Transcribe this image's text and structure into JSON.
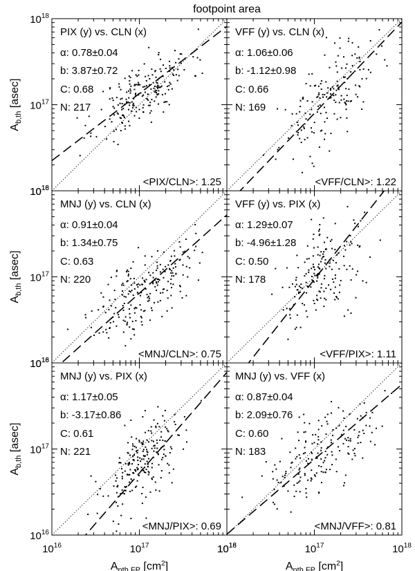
{
  "figure_title": "footpoint area",
  "chart_data": [
    {
      "type": "scatter",
      "title": "PIX (y) vs. CLN (x)",
      "stats": {
        "alpha": "α: 0.78±0.04",
        "b": "b: 3.87±0.72",
        "C": "C: 0.68",
        "N": "N: 217"
      },
      "ratio": "<PIX/CLN>: 1.25",
      "fit": {
        "slope": 0.78,
        "intercept": 3.87
      },
      "n": 217,
      "seed": 11,
      "cx": 17.05,
      "cy": 17.15,
      "sx": 0.27,
      "sy": 0.24,
      "corr": 0.68
    },
    {
      "type": "scatter",
      "title": "VFF (y) vs. CLN (x)",
      "stats": {
        "alpha": "α: 1.06±0.06",
        "b": "b: -1.12±0.98",
        "C": "C: 0.66",
        "N": "N: 169"
      },
      "ratio": "<VFF/CLN>: 1.22",
      "fit": {
        "slope": 1.06,
        "intercept": -1.12
      },
      "n": 169,
      "seed": 23,
      "cx": 17.15,
      "cy": 17.05,
      "sx": 0.27,
      "sy": 0.32,
      "corr": 0.66
    },
    {
      "type": "scatter",
      "title": "MNJ (y) vs. CLN (x)",
      "stats": {
        "alpha": "α: 0.91±0.04",
        "b": "b: 1.34±0.75",
        "C": "C: 0.63",
        "N": "N: 220"
      },
      "ratio": "<MNJ/CLN>: 0.75",
      "fit": {
        "slope": 0.91,
        "intercept": 1.34
      },
      "n": 220,
      "seed": 37,
      "cx": 17.05,
      "cy": 16.85,
      "sx": 0.28,
      "sy": 0.28,
      "corr": 0.63
    },
    {
      "type": "scatter",
      "title": "VFF (y) vs. PIX (x)",
      "stats": {
        "alpha": "α: 1.29±0.07",
        "b": "b: -4.96±1.28",
        "C": "C: 0.50",
        "N": "N: 178"
      },
      "ratio": "<VFF/PIX>: 1.11",
      "fit": {
        "slope": 1.29,
        "intercept": -4.96
      },
      "n": 178,
      "seed": 41,
      "cx": 17.1,
      "cy": 17.05,
      "sx": 0.25,
      "sy": 0.3,
      "corr": 0.5
    },
    {
      "type": "scatter",
      "title": "MNJ (y) vs. PIX (x)",
      "stats": {
        "alpha": "α: 1.17±0.05",
        "b": "b: -3.17±0.86",
        "C": "C: 0.61",
        "N": "N: 221"
      },
      "ratio": "<MNJ/PIX>: 0.69",
      "fit": {
        "slope": 1.17,
        "intercept": -3.17
      },
      "n": 221,
      "seed": 53,
      "cx": 17.05,
      "cy": 16.85,
      "sx": 0.24,
      "sy": 0.3,
      "corr": 0.61
    },
    {
      "type": "scatter",
      "title": "MNJ (y) vs. VFF (x)",
      "stats": {
        "alpha": "α: 0.87±0.04",
        "b": "b: 2.09±0.76",
        "C": "C: 0.60",
        "N": "N: 183"
      },
      "ratio": "<MNJ/VFF>: 0.81",
      "fit": {
        "slope": 0.87,
        "intercept": 2.09
      },
      "n": 183,
      "seed": 67,
      "cx": 17.05,
      "cy": 16.9,
      "sx": 0.3,
      "sy": 0.28,
      "corr": 0.6
    }
  ],
  "axes": {
    "x_range_log10": [
      16,
      18
    ],
    "y_range_log10": [
      16,
      18
    ],
    "x_ticks": [
      {
        "base": "10",
        "exp": "16"
      },
      {
        "base": "10",
        "exp": "17"
      },
      {
        "base": "10",
        "exp": "18"
      }
    ],
    "y_ticks": [
      {
        "base": "10",
        "exp": "16"
      },
      {
        "base": "10",
        "exp": "17"
      },
      {
        "base": "10",
        "exp": "18"
      }
    ],
    "xlabel": {
      "main": "A",
      "sub": "nth,FP",
      "unit": " [cm",
      "unit_exp": "2",
      "unit_end": "]"
    },
    "ylabel": {
      "main": "A",
      "sub": "b,th",
      "unit": " [asec]"
    }
  }
}
